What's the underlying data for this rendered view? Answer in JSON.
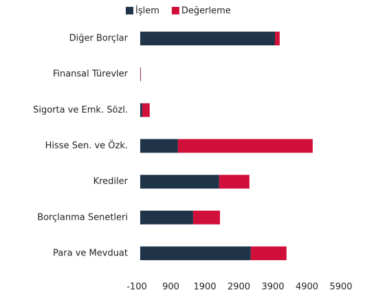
{
  "chart_data": {
    "type": "stacked-barh",
    "categories": [
      "Diğer Borçlar",
      "Finansal Türevler",
      "Sigorta ve Emk. Sözl.",
      "Hisse Sen. ve Özk.",
      "Krediler",
      "Borçlanma Senetleri",
      "Para ve Mevduat"
    ],
    "series": [
      {
        "name": "İşlem",
        "color": "#1f3349",
        "values": [
          3960,
          10,
          60,
          1110,
          2320,
          1555,
          3250
        ]
      },
      {
        "name": "Değerleme",
        "color": "#d0103a",
        "values": [
          140,
          10,
          220,
          3960,
          890,
          790,
          1050
        ]
      }
    ],
    "xlim": [
      -100,
      5900
    ],
    "xticks": [
      -100,
      900,
      1900,
      2900,
      3900,
      4900,
      5900
    ],
    "legend": "top",
    "grid": false
  }
}
